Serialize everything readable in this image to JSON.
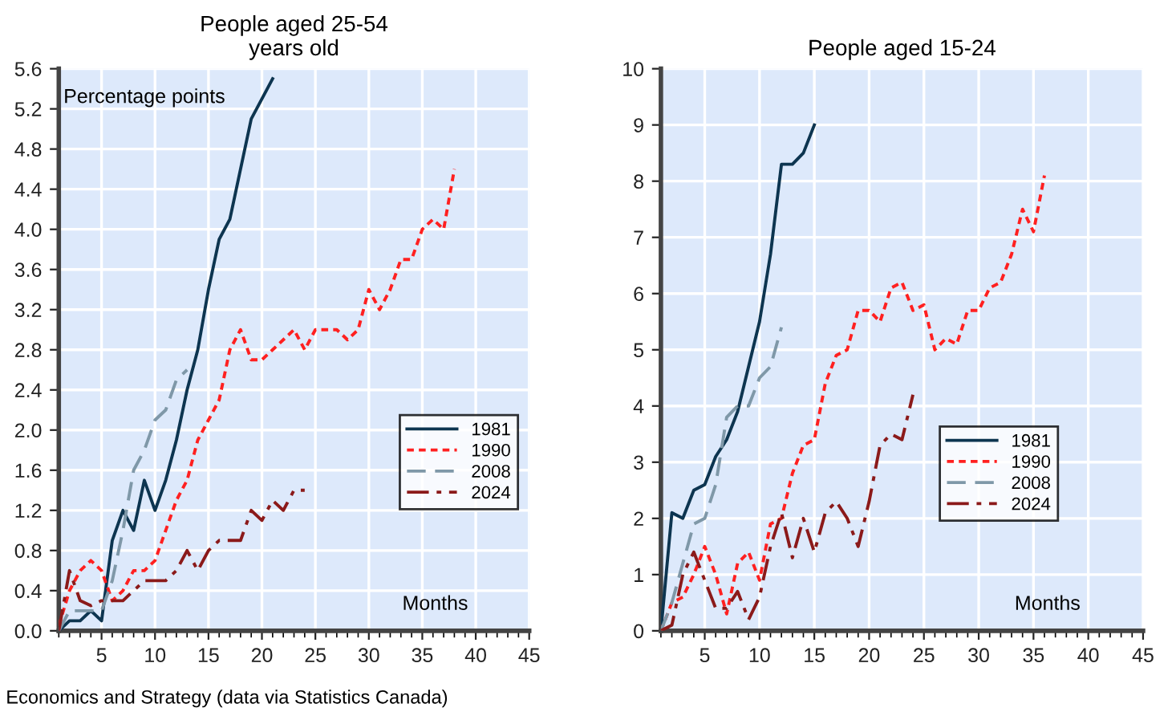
{
  "chart_data": [
    {
      "type": "line",
      "title": "People aged 25-54\nyears old",
      "xlabel": "Months",
      "ylabel": "Percentage points",
      "series": [
        {
          "name": "1981",
          "color": "#0d3550",
          "line_style": "solid",
          "x": [
            1,
            2,
            3,
            4,
            5,
            6,
            7,
            8,
            9,
            10,
            11,
            12,
            13,
            14,
            15,
            16,
            17,
            18,
            19,
            20,
            21
          ],
          "values": [
            0,
            0.1,
            0.1,
            0.2,
            0.1,
            0.9,
            1.2,
            1.0,
            1.5,
            1.2,
            1.5,
            1.9,
            2.4,
            2.8,
            3.4,
            3.9,
            4.1,
            4.6,
            5.1,
            5.3,
            5.5
          ]
        },
        {
          "name": "1990",
          "color": "#ff2020",
          "line_style": "dotted",
          "x": [
            1,
            2,
            3,
            4,
            5,
            6,
            7,
            8,
            9,
            10,
            11,
            12,
            13,
            14,
            15,
            16,
            17,
            18,
            19,
            20,
            21,
            22,
            23,
            24,
            25,
            26,
            27,
            28,
            29,
            30,
            31,
            32,
            33,
            34,
            35,
            36,
            37,
            38
          ],
          "values": [
            0.05,
            0.4,
            0.6,
            0.7,
            0.6,
            0.3,
            0.4,
            0.6,
            0.6,
            0.7,
            1.0,
            1.3,
            1.5,
            1.9,
            2.1,
            2.3,
            2.8,
            3.0,
            2.7,
            2.7,
            2.8,
            2.9,
            3.0,
            2.8,
            3.0,
            3.0,
            3.0,
            2.9,
            3.0,
            3.4,
            3.2,
            3.4,
            3.7,
            3.7,
            4.0,
            4.1,
            4.0,
            4.6
          ]
        },
        {
          "name": "2008",
          "color": "#7f98a8",
          "line_style": "dashed",
          "x": [
            1,
            2,
            3,
            4,
            5,
            6,
            7,
            8,
            9,
            10,
            11,
            12,
            13
          ],
          "values": [
            0,
            0.2,
            0.2,
            0.2,
            0.2,
            0.5,
            1.0,
            1.6,
            1.8,
            2.1,
            2.2,
            2.5,
            2.6
          ]
        },
        {
          "name": "2024",
          "color": "#8b1a1a",
          "line_style": "dashdot",
          "x": [
            1,
            2,
            3,
            4,
            5,
            6,
            7,
            8,
            9,
            10,
            11,
            12,
            13,
            14,
            15,
            16,
            17,
            18,
            19,
            20,
            21,
            22,
            23,
            24
          ],
          "values": [
            0,
            0.6,
            0.3,
            0.25,
            0.3,
            0.3,
            0.3,
            0.4,
            0.5,
            0.5,
            0.5,
            0.6,
            0.8,
            0.6,
            0.8,
            0.9,
            0.9,
            0.9,
            1.2,
            1.1,
            1.3,
            1.2,
            1.4,
            1.4
          ]
        }
      ],
      "xlim": [
        1,
        45
      ],
      "xticks": [
        5,
        10,
        15,
        20,
        25,
        30,
        35,
        40,
        45
      ],
      "ylim": [
        0,
        5.6
      ],
      "yticks": [
        {
          "value": 0,
          "label": "0.0"
        },
        0.4,
        0.8,
        1.2,
        1.6,
        {
          "value": 2,
          "label": "2.0"
        },
        2.4,
        2.8,
        3.2,
        3.6,
        {
          "value": 4,
          "label": "4.0"
        },
        4.4,
        4.8,
        5.2,
        5.6
      ],
      "grid": true,
      "legend": "right",
      "annotations": [
        "Economics and Strategy (data via Statistics Canada)"
      ]
    },
    {
      "type": "line",
      "title": "People aged 15-24",
      "xlabel": "Months",
      "series": [
        {
          "name": "1981",
          "color": "#0d3550",
          "line_style": "solid",
          "x": [
            1,
            2,
            3,
            4,
            5,
            6,
            7,
            8,
            9,
            10,
            11,
            12,
            13,
            14,
            15
          ],
          "values": [
            0,
            2.1,
            2.0,
            2.5,
            2.6,
            3.1,
            3.4,
            3.9,
            4.7,
            5.5,
            6.7,
            8.3,
            8.3,
            8.5,
            9.0
          ]
        },
        {
          "name": "1990",
          "color": "#ff2020",
          "line_style": "dotted",
          "x": [
            1,
            2,
            3,
            4,
            5,
            6,
            7,
            8,
            9,
            10,
            11,
            12,
            13,
            14,
            15,
            16,
            17,
            18,
            19,
            20,
            21,
            22,
            23,
            24,
            25,
            26,
            27,
            28,
            29,
            30,
            31,
            32,
            33,
            34,
            35,
            36
          ],
          "values": [
            0,
            0.5,
            0.6,
            1.0,
            1.5,
            1.0,
            0.3,
            1.2,
            1.4,
            0.9,
            1.9,
            2.0,
            2.8,
            3.3,
            3.4,
            4.4,
            4.9,
            5.0,
            5.7,
            5.7,
            5.5,
            6.1,
            6.2,
            5.7,
            5.8,
            5.0,
            5.2,
            5.1,
            5.7,
            5.7,
            6.1,
            6.2,
            6.7,
            7.5,
            7.1,
            8.1
          ]
        },
        {
          "name": "2008",
          "color": "#7f98a8",
          "line_style": "dashed",
          "x": [
            1,
            2,
            3,
            4,
            5,
            6,
            7,
            8,
            9,
            10,
            11,
            12
          ],
          "values": [
            0,
            0.5,
            1.2,
            1.9,
            2.0,
            2.6,
            3.8,
            4.0,
            4.0,
            4.5,
            4.7,
            5.4
          ]
        },
        {
          "name": "2024",
          "color": "#8b1a1a",
          "line_style": "dashdot",
          "x": [
            1,
            2,
            3,
            4,
            5,
            6,
            7,
            8,
            9,
            10,
            11,
            12,
            13,
            14,
            15,
            16,
            17,
            18,
            19,
            20,
            21,
            22,
            23,
            24
          ],
          "values": [
            0,
            0.1,
            1.0,
            1.4,
            0.9,
            0.4,
            0.4,
            0.7,
            0.2,
            0.6,
            1.5,
            2.1,
            1.3,
            2.0,
            1.4,
            2.1,
            2.3,
            2.0,
            1.5,
            2.3,
            3.3,
            3.5,
            3.4,
            4.2
          ]
        }
      ],
      "xlim": [
        1,
        45
      ],
      "xticks": [
        5,
        10,
        15,
        20,
        25,
        30,
        35,
        40,
        45
      ],
      "ylim": [
        0,
        10
      ],
      "yticks": [
        0,
        1,
        2,
        3,
        4,
        5,
        6,
        7,
        8,
        9,
        10
      ],
      "grid": true,
      "legend": "bottom"
    }
  ]
}
